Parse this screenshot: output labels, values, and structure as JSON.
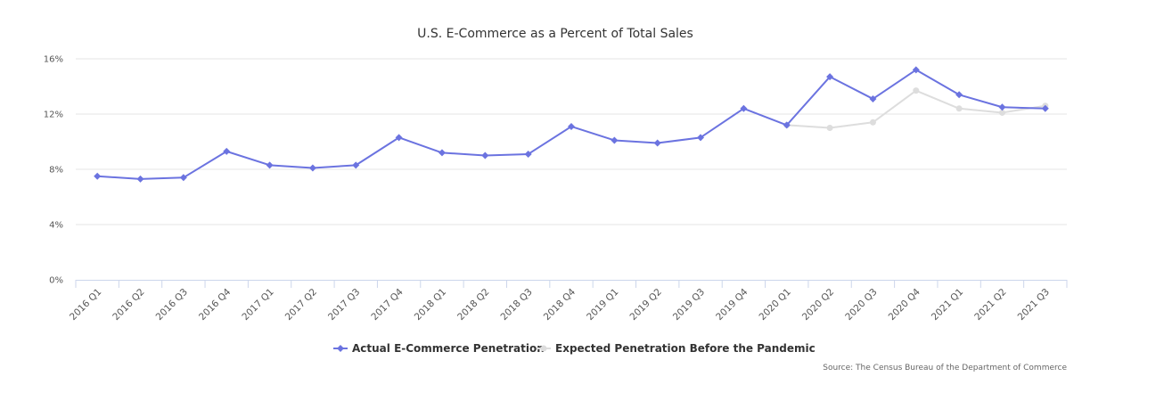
{
  "chart_data": {
    "type": "line",
    "title": "U.S. E-Commerce as a Percent of Total Sales",
    "categories": [
      "2016 Q1",
      "2016 Q2",
      "2016 Q3",
      "2016 Q4",
      "2017 Q1",
      "2017 Q2",
      "2017 Q3",
      "2017 Q4",
      "2018 Q1",
      "2018 Q2",
      "2018 Q3",
      "2018 Q4",
      "2019 Q1",
      "2019 Q2",
      "2019 Q3",
      "2019 Q4",
      "2020 Q1",
      "2020 Q2",
      "2020 Q3",
      "2020 Q4",
      "2021 Q1",
      "2021 Q2",
      "2021 Q3"
    ],
    "yticks": [
      0,
      4,
      8,
      12,
      16
    ],
    "ytick_labels": [
      "0%",
      "4%",
      "8%",
      "12%",
      "16%"
    ],
    "ylim": [
      0,
      16
    ],
    "xlabel": "",
    "ylabel": "",
    "grid": true,
    "legend_position": "bottom-center",
    "series": [
      {
        "name": "Actual E-Commerce Penetration",
        "color": "#6b73e0",
        "marker": "diamond",
        "values": [
          7.5,
          7.3,
          7.4,
          9.3,
          8.3,
          8.1,
          8.3,
          10.3,
          9.2,
          9.0,
          9.1,
          11.1,
          10.1,
          9.9,
          10.3,
          12.4,
          11.2,
          14.7,
          13.1,
          15.2,
          13.4,
          12.5,
          12.4
        ]
      },
      {
        "name": "Expected Penetration Before the Pandemic",
        "color": "#dddddd",
        "marker": "circle",
        "values": [
          null,
          null,
          null,
          null,
          null,
          null,
          null,
          null,
          null,
          null,
          null,
          null,
          null,
          null,
          null,
          null,
          11.2,
          11.0,
          11.4,
          13.7,
          12.4,
          12.1,
          12.6
        ]
      }
    ],
    "source": "Source: The Census Bureau of the Department of Commerce"
  }
}
